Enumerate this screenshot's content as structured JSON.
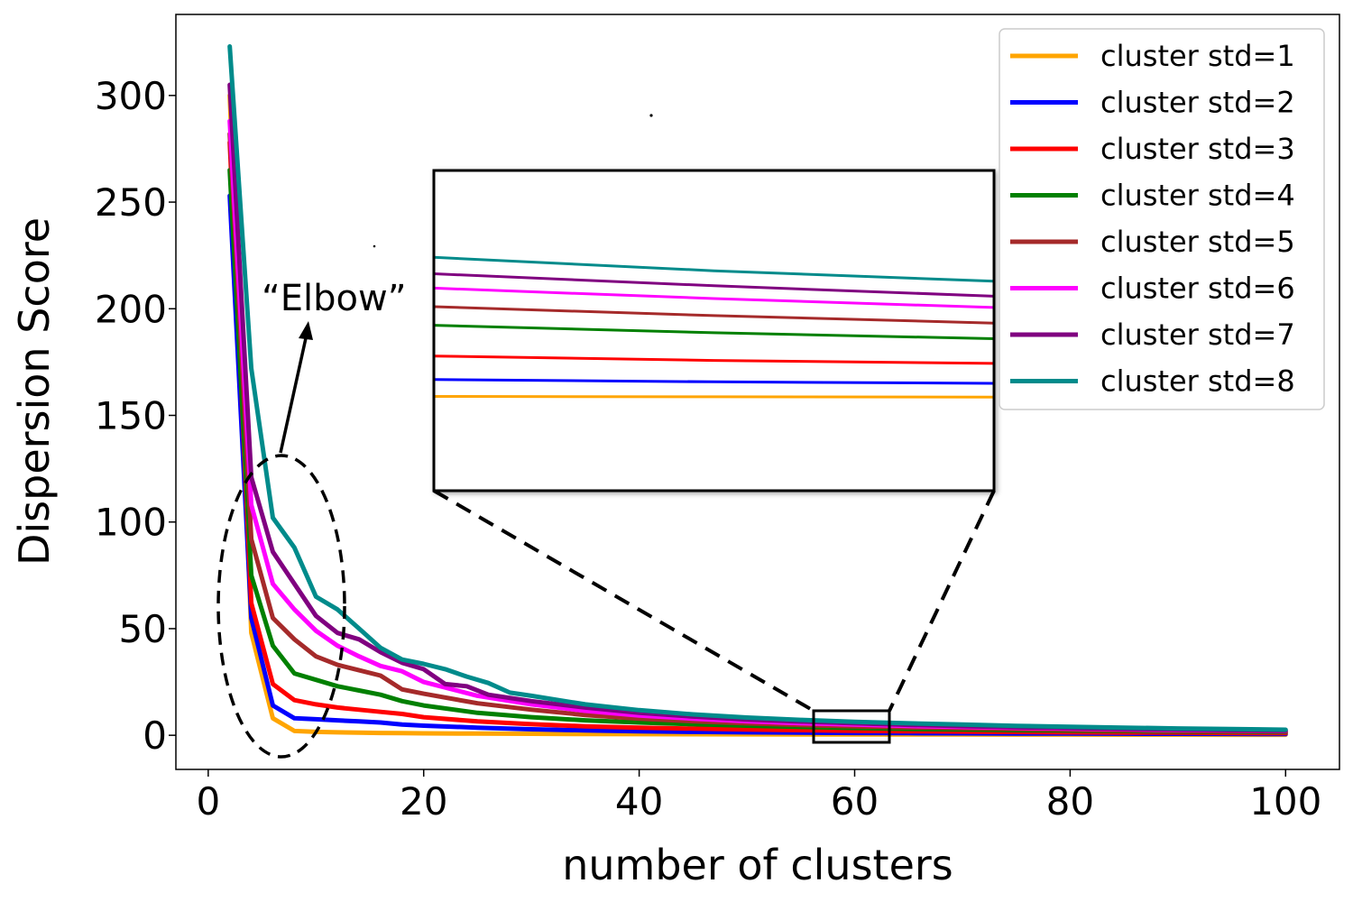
{
  "chart_data": {
    "type": "line",
    "title": "",
    "xlabel": "number of clusters",
    "ylabel": "Dispersion Score",
    "xlim": [
      -3,
      105
    ],
    "ylim": [
      -16,
      338
    ],
    "xticks": [
      0,
      20,
      40,
      60,
      80,
      100
    ],
    "yticks": [
      0,
      50,
      100,
      150,
      200,
      250,
      300
    ],
    "grid": false,
    "legend_position": "top-right",
    "series": [
      {
        "name": "cluster std=1",
        "color": "#FFA500",
        "x": [
          2,
          4,
          6,
          8,
          10,
          12,
          14,
          16,
          18,
          20,
          25,
          30,
          35,
          40,
          45,
          50,
          55,
          60,
          65,
          70,
          75,
          80,
          85,
          90,
          95,
          100
        ],
        "y": [
          300,
          48,
          8,
          2,
          1.6,
          1.4,
          1.2,
          1.1,
          1.0,
          0.9,
          0.8,
          0.7,
          0.6,
          0.55,
          0.5,
          0.45,
          0.42,
          0.4,
          0.38,
          0.36,
          0.34,
          0.32,
          0.3,
          0.28,
          0.26,
          0.25
        ]
      },
      {
        "name": "cluster std=2",
        "color": "#0000FF",
        "x": [
          2,
          4,
          6,
          8,
          10,
          12,
          14,
          16,
          18,
          20,
          25,
          30,
          35,
          40,
          45,
          50,
          55,
          60,
          65,
          70,
          75,
          80,
          85,
          90,
          95,
          100
        ],
        "y": [
          253,
          55,
          14,
          8,
          7.5,
          7,
          6.5,
          6,
          5,
          4.5,
          3.6,
          2.8,
          2.3,
          1.9,
          1.6,
          1.4,
          1.25,
          1.1,
          1.0,
          0.9,
          0.85,
          0.8,
          0.75,
          0.7,
          0.65,
          0.6
        ]
      },
      {
        "name": "cluster std=3",
        "color": "#FF0000",
        "x": [
          2,
          4,
          6,
          8,
          10,
          12,
          14,
          16,
          18,
          20,
          25,
          30,
          35,
          40,
          45,
          50,
          55,
          60,
          65,
          70,
          75,
          80,
          85,
          90,
          95,
          100
        ],
        "y": [
          278,
          62,
          24,
          16.5,
          14.5,
          13,
          12,
          11,
          10,
          8.5,
          6.5,
          5.2,
          4.2,
          3.6,
          3.1,
          2.7,
          2.4,
          2.1,
          1.9,
          1.7,
          1.55,
          1.4,
          1.3,
          1.2,
          1.1,
          1.0
        ]
      },
      {
        "name": "cluster std=4",
        "color": "#008000",
        "x": [
          2,
          4,
          6,
          8,
          10,
          12,
          14,
          16,
          18,
          20,
          25,
          30,
          35,
          40,
          45,
          50,
          55,
          60,
          65,
          70,
          75,
          80,
          85,
          90,
          95,
          100
        ],
        "y": [
          265,
          75,
          42,
          29,
          26,
          23,
          21,
          19,
          16,
          14,
          10.5,
          8.5,
          7,
          6,
          5.2,
          4.5,
          3.9,
          3.4,
          3.0,
          2.7,
          2.4,
          2.2,
          2.0,
          1.8,
          1.65,
          1.5
        ]
      },
      {
        "name": "cluster std=5",
        "color": "#A52A2A",
        "x": [
          2,
          4,
          6,
          8,
          10,
          12,
          14,
          16,
          18,
          20,
          25,
          30,
          35,
          40,
          45,
          50,
          55,
          60,
          65,
          70,
          75,
          80,
          85,
          90,
          95,
          100
        ],
        "y": [
          282,
          92,
          55,
          45,
          37,
          33,
          30.5,
          28,
          21.5,
          19.5,
          15,
          12,
          9.5,
          7.8,
          6.6,
          5.6,
          4.8,
          4.2,
          3.7,
          3.3,
          2.9,
          2.6,
          2.3,
          2.1,
          1.9,
          1.7
        ]
      },
      {
        "name": "cluster std=6",
        "color": "#FF00FF",
        "x": [
          2,
          4,
          6,
          8,
          10,
          12,
          14,
          16,
          18,
          20,
          25,
          30,
          35,
          40,
          45,
          50,
          55,
          60,
          65,
          70,
          75,
          80,
          85,
          90,
          95,
          100
        ],
        "y": [
          288,
          108,
          71,
          59,
          49,
          42,
          37,
          32.5,
          30,
          25,
          18.5,
          14.5,
          11.5,
          9.3,
          7.8,
          6.6,
          5.7,
          5.0,
          4.4,
          3.9,
          3.5,
          3.1,
          2.8,
          2.5,
          2.3,
          2.1
        ]
      },
      {
        "name": "cluster std=7",
        "color": "#800080",
        "x": [
          2,
          4,
          6,
          8,
          10,
          12,
          14,
          16,
          18,
          20,
          22,
          24,
          26,
          30,
          35,
          40,
          45,
          50,
          55,
          60,
          65,
          70,
          75,
          80,
          85,
          90,
          95,
          100
        ],
        "y": [
          305,
          121,
          86,
          71,
          56,
          48,
          45,
          39,
          34,
          31,
          24,
          23,
          19,
          16,
          13,
          10.5,
          8.8,
          7.4,
          6.4,
          5.6,
          4.9,
          4.3,
          3.8,
          3.4,
          3.0,
          2.7,
          2.4,
          2.2
        ]
      },
      {
        "name": "cluster std=8",
        "color": "#008B8B",
        "x": [
          2,
          4,
          6,
          8,
          10,
          12,
          14,
          16,
          18,
          20,
          22,
          24,
          26,
          28,
          30,
          35,
          40,
          45,
          50,
          55,
          60,
          65,
          70,
          75,
          80,
          85,
          90,
          95,
          100
        ],
        "y": [
          323,
          172,
          102,
          88,
          65,
          59,
          50,
          41,
          35.5,
          33.5,
          31,
          27.5,
          24.5,
          20,
          18.5,
          14.5,
          11.8,
          9.8,
          8.3,
          7.2,
          6.3,
          5.6,
          5.0,
          4.4,
          4.0,
          3.6,
          3.2,
          2.9,
          2.6
        ]
      }
    ],
    "annotations": [
      {
        "text": "“Elbow”"
      }
    ],
    "inset": {
      "xrange": [
        56.5,
        63.5
      ],
      "yrange": [
        -4,
        11
      ]
    }
  }
}
